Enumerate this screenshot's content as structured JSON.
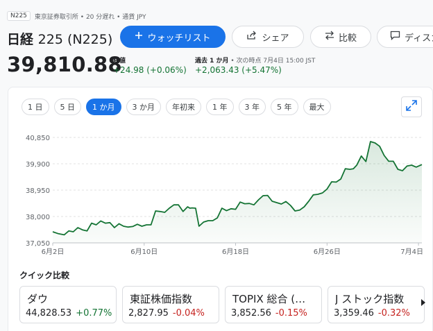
{
  "header": {
    "ticker_badge": "N225",
    "meta": "東京証券取引所 • 20 分遅れ • 通貨 JPY",
    "name": "日経",
    "code": "225 (N225)"
  },
  "actions": {
    "watchlist": "ウォッチリスト",
    "share": "シェア",
    "compare": "比較",
    "discuss": "ディスカ"
  },
  "quote": {
    "price": "39,810.88",
    "close_label": "終値",
    "close_change": "+24.98 (+0.06%)",
    "period_label": "過去 1 か月",
    "period_note": " • 次の時点 7月4日 15:00 JST",
    "period_change": "+2,063.43 (+5.47%)"
  },
  "ranges": [
    "1 日",
    "5 日",
    "1 か月",
    "3 か月",
    "年初来",
    "1 年",
    "3 年",
    "5 年",
    "最大"
  ],
  "active_range": 2,
  "icons": {
    "watchlist": "plus-icon",
    "share": "share-icon",
    "compare": "swap-icon",
    "discuss": "comment-icon",
    "expand": "expand-icon",
    "next": "chevron-right-icon"
  },
  "colors": {
    "accent": "#1a73e8",
    "up": "#137333",
    "down": "#c5221f",
    "line": "#137333"
  },
  "chart_data": {
    "type": "area",
    "y_ticks": [
      "40,850",
      "39,900",
      "38,950",
      "38,000",
      "37,050"
    ],
    "y_tick_values": [
      40850,
      39900,
      38950,
      38000,
      37050
    ],
    "ylim": [
      37050,
      40850
    ],
    "x_ticks": [
      "6月2日",
      "6月10日",
      "6月18日",
      "6月26日",
      "7月4日"
    ],
    "x_tick_positions": [
      0,
      8,
      16,
      24,
      32
    ],
    "xlim": [
      0,
      32.3
    ],
    "grid": "horizontal-dashed",
    "series": [
      {
        "x": [
          0,
          0.5,
          1,
          1.4,
          1.8,
          2.2,
          2.6,
          3,
          3.4,
          3.8,
          4.2,
          4.6,
          5,
          5.4,
          5.8,
          6.2,
          6.6,
          7,
          7.4,
          7.8,
          8.2,
          8.6,
          9,
          9.4,
          9.8,
          10.2,
          10.6,
          11,
          11.4,
          11.8,
          12,
          12.2,
          12.5,
          12.8,
          13.2,
          13.6,
          14,
          14.4,
          14.8,
          15.2,
          15.6,
          16,
          16.4,
          16.8,
          17.2,
          17.6,
          18,
          18.4,
          18.8,
          19.2,
          19.6,
          20,
          20.4,
          20.8,
          21.2,
          21.6,
          22,
          22.4,
          22.8,
          23.2,
          23.6,
          24,
          24.4,
          24.8,
          25.2,
          25.6,
          26,
          26.3,
          26.6,
          27,
          27.4,
          27.8,
          28.2,
          28.6,
          29,
          29.4,
          29.8,
          30.2,
          30.6,
          31,
          31.4,
          31.8,
          32.3
        ],
        "values": [
          37450,
          37380,
          37340,
          37480,
          37450,
          37600,
          37520,
          37480,
          37760,
          37700,
          37840,
          37760,
          37780,
          37600,
          37740,
          37650,
          37620,
          37640,
          37720,
          37650,
          37700,
          37700,
          38200,
          38180,
          38150,
          38300,
          38420,
          38420,
          38180,
          38350,
          38300,
          38310,
          38300,
          37650,
          37800,
          37850,
          37850,
          37950,
          38300,
          38210,
          38280,
          38260,
          38520,
          38460,
          38470,
          38420,
          38600,
          38750,
          38760,
          38550,
          38500,
          38450,
          38540,
          38400,
          38200,
          38230,
          38350,
          38550,
          38780,
          38800,
          38850,
          38990,
          39250,
          39240,
          39350,
          39720,
          39700,
          39720,
          39850,
          40180,
          39980,
          40700,
          40650,
          40530,
          40200,
          39990,
          39990,
          39700,
          39650,
          39820,
          39850,
          39780,
          39870
        ]
      }
    ]
  },
  "quick_compare": {
    "title": "クイック比較",
    "items": [
      {
        "name": "ダウ",
        "value": "44,828.53",
        "change": "+0.77%",
        "dir": "up"
      },
      {
        "name": "東証株価指数",
        "value": "2,827.95",
        "change": "-0.04%",
        "dir": "down"
      },
      {
        "name": "TOPIX 総合 (…",
        "value": "3,852.56",
        "change": "-0.15%",
        "dir": "down"
      },
      {
        "name": "J ストック指数",
        "value": "3,359.46",
        "change": "-0.32%",
        "dir": "down"
      }
    ]
  }
}
